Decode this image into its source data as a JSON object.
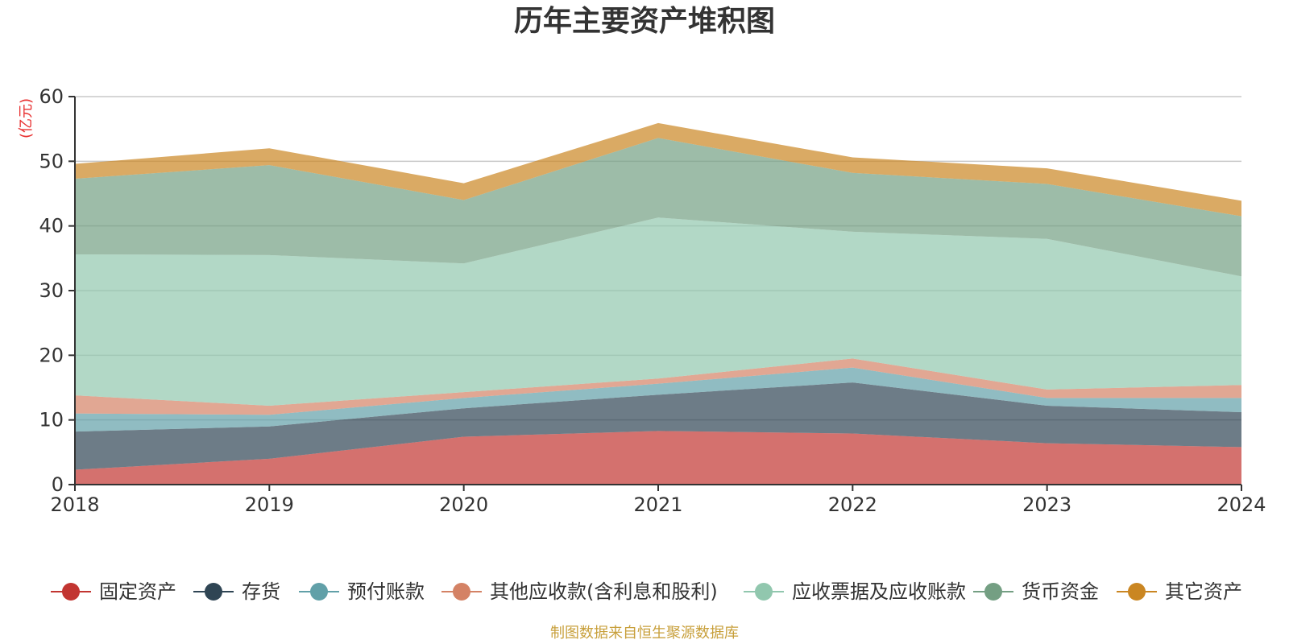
{
  "chart_data": {
    "type": "area",
    "stacked": true,
    "title": "历年主要资产堆积图",
    "unit_label": "(亿元)",
    "source": "制图数据来自恒生聚源数据库",
    "x": [
      "2018",
      "2019",
      "2020",
      "2021",
      "2022",
      "2023",
      "2024"
    ],
    "ylim": [
      0,
      60
    ],
    "yticks": [
      "0",
      "10",
      "20",
      "30",
      "40",
      "50",
      "60"
    ],
    "grid": true,
    "legend_position": "bottom",
    "series": [
      {
        "name": "固定资产",
        "color": "#c23531",
        "values": [
          2.3,
          4.0,
          7.4,
          8.3,
          7.9,
          6.4,
          5.8
        ]
      },
      {
        "name": "存货",
        "color": "#2f4554",
        "values": [
          5.9,
          5.0,
          4.4,
          5.6,
          7.9,
          5.8,
          5.4
        ]
      },
      {
        "name": "预付账款",
        "color": "#61a0a8",
        "values": [
          2.8,
          1.8,
          1.6,
          1.7,
          2.3,
          1.2,
          2.2
        ]
      },
      {
        "name": "其他应收款(含利息和股利)",
        "color": "#d48265",
        "values": [
          2.8,
          1.4,
          0.9,
          0.8,
          1.4,
          1.3,
          2.0
        ]
      },
      {
        "name": "应收票据及应收账款",
        "color": "#91c7ae",
        "values": [
          21.8,
          23.3,
          19.9,
          24.9,
          19.6,
          23.3,
          16.8
        ]
      },
      {
        "name": "货币资金",
        "color": "#749f83",
        "values": [
          11.7,
          13.9,
          9.8,
          12.3,
          9.1,
          8.5,
          9.3
        ]
      },
      {
        "name": "其它资产",
        "color": "#ca8622",
        "values": [
          2.3,
          2.6,
          2.6,
          2.3,
          2.4,
          2.4,
          2.4
        ]
      }
    ]
  }
}
